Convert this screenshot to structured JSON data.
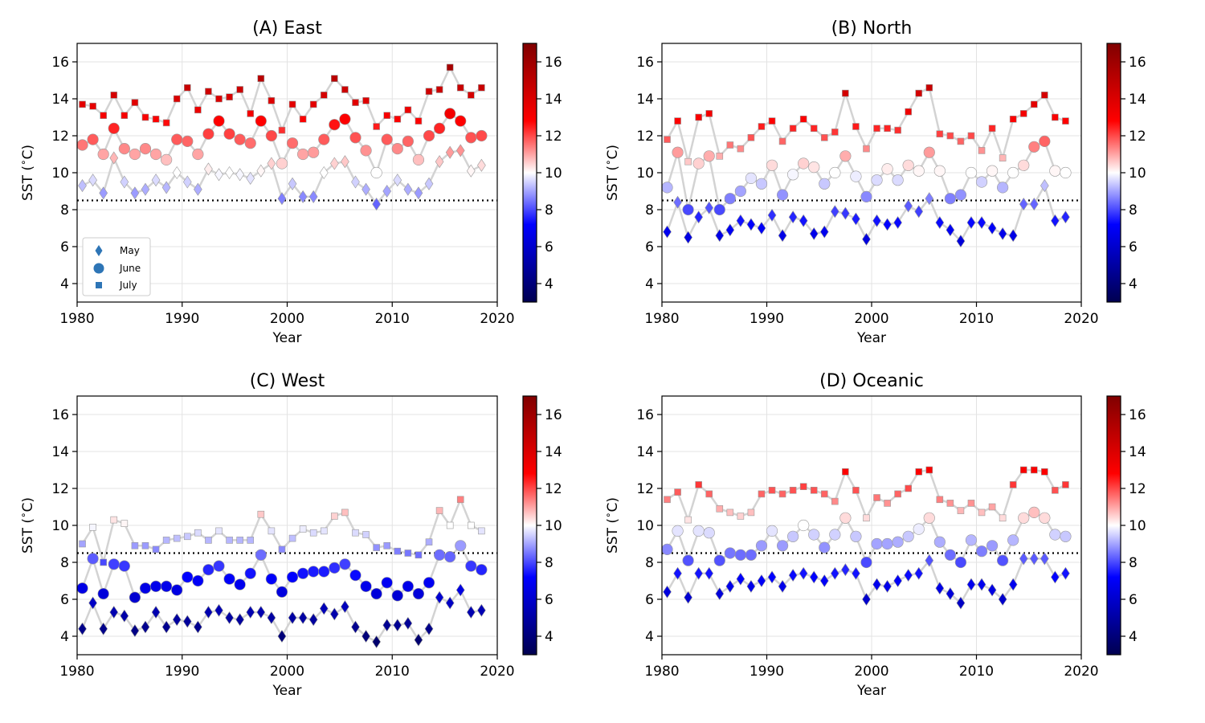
{
  "figure": {
    "colorbar": {
      "min": 3,
      "max": 17,
      "ticks": [
        4,
        6,
        8,
        10,
        12,
        14,
        16
      ]
    },
    "colormap": [
      "#000050",
      "#0000ff",
      "#ffffff",
      "#ff0000",
      "#800000"
    ],
    "line_color": "#d3d3d3",
    "threshold_line_color": "#000000",
    "legend": {
      "placement": "lower-left",
      "marker_color": "#2e75b6",
      "entries": [
        "May",
        "June",
        "July"
      ]
    }
  },
  "chart_data": [
    {
      "type": "scatter",
      "title": "(A) East",
      "xlabel": "Year",
      "ylabel": "SST ($^\\circ$C)",
      "xlim": [
        1980,
        2020
      ],
      "ylim": [
        3,
        17
      ],
      "xticks": [
        1980,
        1990,
        2000,
        2010,
        2020
      ],
      "yticks": [
        4,
        6,
        8,
        10,
        12,
        14,
        16
      ],
      "grid": true,
      "threshold": 8.5,
      "legend": true,
      "x": [
        1980.5,
        1981.5,
        1982.5,
        1983.5,
        1984.5,
        1985.5,
        1986.5,
        1987.5,
        1988.5,
        1989.5,
        1990.5,
        1991.5,
        1992.5,
        1993.5,
        1994.5,
        1995.5,
        1996.5,
        1997.5,
        1998.5,
        1999.5,
        2000.5,
        2001.5,
        2002.5,
        2003.5,
        2004.5,
        2005.5,
        2006.5,
        2007.5,
        2008.5,
        2009.5,
        2010.5,
        2011.5,
        2012.5,
        2013.5,
        2014.5,
        2015.5,
        2016.5,
        2017.5,
        2018.5
      ],
      "series": [
        {
          "name": "May",
          "marker": "diamond",
          "values": [
            9.3,
            9.6,
            8.9,
            10.8,
            9.5,
            8.9,
            9.1,
            9.6,
            9.2,
            10.0,
            9.5,
            9.1,
            10.2,
            9.9,
            10.0,
            9.9,
            9.7,
            10.1,
            10.5,
            8.6,
            9.4,
            8.7,
            8.7,
            10.0,
            10.5,
            10.6,
            9.5,
            9.1,
            8.3,
            9.0,
            9.6,
            9.1,
            8.9,
            9.4,
            10.6,
            11.1,
            11.2,
            10.1,
            10.4
          ]
        },
        {
          "name": "June",
          "marker": "circle",
          "values": [
            11.5,
            11.8,
            11.0,
            12.4,
            11.3,
            11.0,
            11.3,
            11.0,
            10.7,
            11.8,
            11.7,
            11.0,
            12.1,
            12.8,
            12.1,
            11.8,
            11.6,
            12.8,
            12.0,
            10.5,
            11.6,
            11.0,
            11.1,
            11.8,
            12.6,
            12.9,
            11.9,
            11.2,
            10.0,
            11.8,
            11.3,
            11.7,
            10.7,
            12.0,
            12.4,
            13.2,
            12.8,
            11.9,
            12.0
          ]
        },
        {
          "name": "July",
          "marker": "square",
          "values": [
            13.7,
            13.6,
            13.1,
            14.2,
            13.1,
            13.8,
            13.0,
            12.9,
            12.7,
            14.0,
            14.6,
            13.4,
            14.4,
            14.0,
            14.1,
            14.5,
            13.2,
            15.1,
            13.9,
            12.3,
            13.7,
            12.9,
            13.7,
            14.2,
            15.1,
            14.5,
            13.8,
            13.9,
            12.5,
            13.1,
            12.9,
            13.4,
            12.8,
            14.4,
            14.5,
            15.7,
            14.6,
            14.2,
            14.6
          ]
        }
      ]
    },
    {
      "type": "scatter",
      "title": "(B) North",
      "xlabel": "Year",
      "ylabel": "SST ($^\\circ$C)",
      "xlim": [
        1980,
        2020
      ],
      "ylim": [
        3,
        17
      ],
      "xticks": [
        1980,
        1990,
        2000,
        2010,
        2020
      ],
      "yticks": [
        4,
        6,
        8,
        10,
        12,
        14,
        16
      ],
      "grid": true,
      "threshold": 8.5,
      "legend": false,
      "x": [
        1980.5,
        1981.5,
        1982.5,
        1983.5,
        1984.5,
        1985.5,
        1986.5,
        1987.5,
        1988.5,
        1989.5,
        1990.5,
        1991.5,
        1992.5,
        1993.5,
        1994.5,
        1995.5,
        1996.5,
        1997.5,
        1998.5,
        1999.5,
        2000.5,
        2001.5,
        2002.5,
        2003.5,
        2004.5,
        2005.5,
        2006.5,
        2007.5,
        2008.5,
        2009.5,
        2010.5,
        2011.5,
        2012.5,
        2013.5,
        2014.5,
        2015.5,
        2016.5,
        2017.5,
        2018.5
      ],
      "series": [
        {
          "name": "May",
          "marker": "diamond",
          "values": [
            6.8,
            8.4,
            6.5,
            7.6,
            8.1,
            6.6,
            6.9,
            7.4,
            7.2,
            7.0,
            7.7,
            6.6,
            7.6,
            7.4,
            6.7,
            6.8,
            7.9,
            7.8,
            7.5,
            6.4,
            7.4,
            7.2,
            7.3,
            8.2,
            7.9,
            8.6,
            7.3,
            6.9,
            6.3,
            7.3,
            7.3,
            7.0,
            6.7,
            6.6,
            8.3,
            8.3,
            9.3,
            7.4,
            7.6
          ]
        },
        {
          "name": "June",
          "marker": "circle",
          "values": [
            9.2,
            11.1,
            8.0,
            10.5,
            10.9,
            8.0,
            8.6,
            9.0,
            9.7,
            9.4,
            10.4,
            8.8,
            9.9,
            10.5,
            10.3,
            9.4,
            10.0,
            10.9,
            9.8,
            8.7,
            9.6,
            10.2,
            9.6,
            10.4,
            10.1,
            11.1,
            10.1,
            8.6,
            8.8,
            10.0,
            9.5,
            10.1,
            9.2,
            10.0,
            10.4,
            11.4,
            11.7,
            10.1,
            10.0
          ]
        },
        {
          "name": "July",
          "marker": "square",
          "values": [
            11.8,
            12.8,
            10.6,
            13.0,
            13.2,
            10.9,
            11.5,
            11.3,
            11.9,
            12.5,
            12.8,
            11.7,
            12.4,
            12.9,
            12.4,
            11.9,
            12.2,
            14.3,
            12.5,
            11.3,
            12.4,
            12.4,
            12.3,
            13.3,
            14.3,
            14.6,
            12.1,
            12.0,
            11.7,
            12.0,
            11.2,
            12.4,
            10.8,
            12.9,
            13.2,
            13.7,
            14.2,
            13.0,
            12.8
          ]
        }
      ]
    },
    {
      "type": "scatter",
      "title": "(C) West",
      "xlabel": "Year",
      "ylabel": "SST ($^\\circ$C)",
      "xlim": [
        1980,
        2020
      ],
      "ylim": [
        3,
        17
      ],
      "xticks": [
        1980,
        1990,
        2000,
        2010,
        2020
      ],
      "yticks": [
        4,
        6,
        8,
        10,
        12,
        14,
        16
      ],
      "grid": true,
      "threshold": 8.5,
      "legend": false,
      "x": [
        1980.5,
        1981.5,
        1982.5,
        1983.5,
        1984.5,
        1985.5,
        1986.5,
        1987.5,
        1988.5,
        1989.5,
        1990.5,
        1991.5,
        1992.5,
        1993.5,
        1994.5,
        1995.5,
        1996.5,
        1997.5,
        1998.5,
        1999.5,
        2000.5,
        2001.5,
        2002.5,
        2003.5,
        2004.5,
        2005.5,
        2006.5,
        2007.5,
        2008.5,
        2009.5,
        2010.5,
        2011.5,
        2012.5,
        2013.5,
        2014.5,
        2015.5,
        2016.5,
        2017.5,
        2018.5
      ],
      "series": [
        {
          "name": "May",
          "marker": "diamond",
          "values": [
            4.4,
            5.8,
            4.4,
            5.3,
            5.1,
            4.3,
            4.5,
            5.3,
            4.5,
            4.9,
            4.8,
            4.5,
            5.3,
            5.4,
            5.0,
            4.9,
            5.3,
            5.3,
            5.0,
            4.0,
            5.0,
            5.0,
            4.9,
            5.5,
            5.2,
            5.6,
            4.5,
            4.0,
            3.7,
            4.6,
            4.6,
            4.7,
            3.8,
            4.4,
            6.1,
            5.8,
            6.5,
            5.3,
            5.4
          ]
        },
        {
          "name": "June",
          "marker": "circle",
          "values": [
            6.6,
            8.2,
            6.3,
            7.9,
            7.8,
            6.1,
            6.6,
            6.7,
            6.7,
            6.5,
            7.2,
            7.0,
            7.6,
            7.8,
            7.1,
            6.8,
            7.4,
            8.4,
            7.1,
            6.4,
            7.2,
            7.4,
            7.5,
            7.5,
            7.7,
            7.9,
            7.3,
            6.7,
            6.3,
            6.9,
            6.2,
            6.7,
            6.3,
            6.9,
            8.4,
            8.3,
            8.9,
            7.8,
            7.6
          ]
        },
        {
          "name": "July",
          "marker": "square",
          "values": [
            9.0,
            9.9,
            8.0,
            10.3,
            10.1,
            8.9,
            8.9,
            8.7,
            9.2,
            9.3,
            9.4,
            9.6,
            9.2,
            9.7,
            9.2,
            9.2,
            9.2,
            10.6,
            9.7,
            8.7,
            9.3,
            9.8,
            9.6,
            9.7,
            10.5,
            10.7,
            9.6,
            9.5,
            8.8,
            8.9,
            8.6,
            8.5,
            8.4,
            9.1,
            10.8,
            10.0,
            11.4,
            10.0,
            9.7
          ]
        }
      ]
    },
    {
      "type": "scatter",
      "title": "(D) Oceanic",
      "xlabel": "Year",
      "ylabel": "SST ($^\\circ$C)",
      "xlim": [
        1980,
        2020
      ],
      "ylim": [
        3,
        17
      ],
      "xticks": [
        1980,
        1990,
        2000,
        2010,
        2020
      ],
      "yticks": [
        4,
        6,
        8,
        10,
        12,
        14,
        16
      ],
      "grid": true,
      "threshold": 8.5,
      "legend": false,
      "x": [
        1980.5,
        1981.5,
        1982.5,
        1983.5,
        1984.5,
        1985.5,
        1986.5,
        1987.5,
        1988.5,
        1989.5,
        1990.5,
        1991.5,
        1992.5,
        1993.5,
        1994.5,
        1995.5,
        1996.5,
        1997.5,
        1998.5,
        1999.5,
        2000.5,
        2001.5,
        2002.5,
        2003.5,
        2004.5,
        2005.5,
        2006.5,
        2007.5,
        2008.5,
        2009.5,
        2010.5,
        2011.5,
        2012.5,
        2013.5,
        2014.5,
        2015.5,
        2016.5,
        2017.5,
        2018.5
      ],
      "series": [
        {
          "name": "May",
          "marker": "diamond",
          "values": [
            6.4,
            7.4,
            6.1,
            7.4,
            7.4,
            6.3,
            6.7,
            7.1,
            6.7,
            7.0,
            7.2,
            6.7,
            7.3,
            7.4,
            7.2,
            7.0,
            7.4,
            7.6,
            7.4,
            6.0,
            6.8,
            6.7,
            7.0,
            7.3,
            7.4,
            8.1,
            6.6,
            6.3,
            5.8,
            6.8,
            6.8,
            6.5,
            6.0,
            6.8,
            8.2,
            8.2,
            8.2,
            7.2,
            7.4
          ]
        },
        {
          "name": "June",
          "marker": "circle",
          "values": [
            8.7,
            9.7,
            8.1,
            9.7,
            9.6,
            8.1,
            8.5,
            8.4,
            8.4,
            8.9,
            9.7,
            8.9,
            9.4,
            10.0,
            9.5,
            8.8,
            9.5,
            10.4,
            9.4,
            8.0,
            9.0,
            9.0,
            9.1,
            9.4,
            9.8,
            10.4,
            9.1,
            8.4,
            8.0,
            9.2,
            8.6,
            8.9,
            8.1,
            9.2,
            10.4,
            10.7,
            10.4,
            9.5,
            9.4
          ]
        },
        {
          "name": "July",
          "marker": "square",
          "values": [
            11.4,
            11.8,
            10.3,
            12.2,
            11.7,
            10.9,
            10.7,
            10.5,
            10.7,
            11.7,
            11.9,
            11.7,
            11.9,
            12.1,
            11.9,
            11.7,
            11.3,
            12.9,
            11.9,
            10.4,
            11.5,
            11.2,
            11.7,
            12.0,
            12.9,
            13.0,
            11.4,
            11.2,
            10.8,
            11.2,
            10.7,
            11.0,
            10.4,
            12.2,
            13.0,
            13.0,
            12.9,
            11.9,
            12.2
          ]
        }
      ]
    }
  ]
}
